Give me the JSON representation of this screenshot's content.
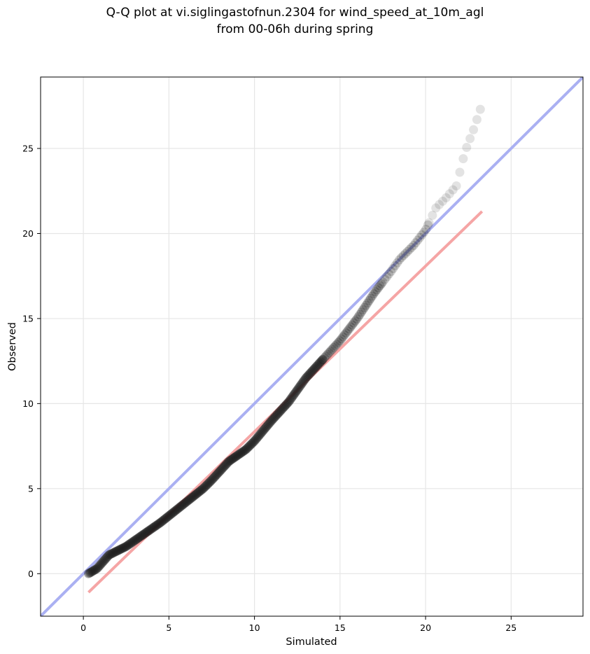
{
  "chart_data": {
    "type": "scatter",
    "title_lines": [
      "Q-Q plot at vi.siglingastofnun.2304 for wind_speed_at_10m_agl",
      "from 00-06h during spring"
    ],
    "xlabel": "Simulated",
    "ylabel": "Observed",
    "xlim": [
      -2.5,
      29.2
    ],
    "ylim": [
      -2.5,
      29.2
    ],
    "xticks": [
      0,
      5,
      10,
      15,
      20,
      25
    ],
    "yticks": [
      0,
      5,
      10,
      15,
      20,
      25
    ],
    "grid": true,
    "reference_lines": [
      {
        "kind": "identity",
        "color": "#aab0f2",
        "x": [
          -2.5,
          29.2
        ],
        "y": [
          -2.5,
          29.2
        ]
      },
      {
        "kind": "fit",
        "color": "#f5a5a5",
        "x": [
          0.3,
          23.3
        ],
        "y": [
          -1.1,
          21.3
        ]
      }
    ],
    "quantile_anchors": {
      "x": [
        0.3,
        0.8,
        1.5,
        2.5,
        3.5,
        4.5,
        6.0,
        7.0,
        7.5,
        8.5,
        9.5,
        10.0,
        11.0,
        12.0,
        13.0,
        14.0,
        15.0,
        16.0,
        17.0,
        18.0,
        18.5,
        19.3,
        20.0,
        20.6,
        21.2,
        21.8,
        22.3,
        22.8,
        23.3
      ],
      "y": [
        0.0,
        0.3,
        1.1,
        1.6,
        2.3,
        3.0,
        4.2,
        5.0,
        5.5,
        6.6,
        7.3,
        7.8,
        9.0,
        10.1,
        11.5,
        12.6,
        13.7,
        15.0,
        16.5,
        17.8,
        18.5,
        19.3,
        20.2,
        21.5,
        22.1,
        22.8,
        24.8,
        26.1,
        27.6
      ]
    },
    "point_style": {
      "color": "#1a1a1a",
      "dense_opacity": 0.35,
      "sparse_opacity": 0.12
    }
  }
}
